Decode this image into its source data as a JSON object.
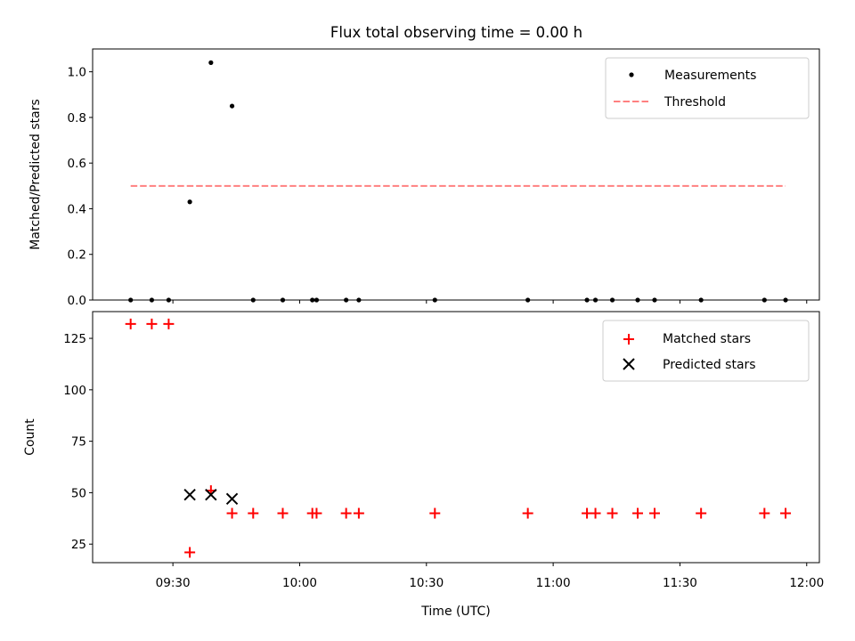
{
  "title": "Flux total observing time = 0.00 h",
  "xlabel": "Time (UTC)",
  "chart_data": [
    {
      "type": "scatter",
      "ylabel": "Matched/Predicted stars",
      "ylim": [
        0,
        1.1
      ],
      "yticks": [
        0.0,
        0.2,
        0.4,
        0.6,
        0.8,
        1.0
      ],
      "yticklabels": [
        "0.0",
        "0.2",
        "0.4",
        "0.6",
        "0.8",
        "1.0"
      ],
      "grid": false,
      "legend_position": "top-right",
      "series": [
        {
          "name": "Measurements",
          "kind": "scatter",
          "marker": "dot",
          "color": "#000000",
          "x": [
            "09:20",
            "09:25",
            "09:29",
            "09:34",
            "09:39",
            "09:44",
            "09:49",
            "09:56",
            "10:03",
            "10:04",
            "10:11",
            "10:14",
            "10:32",
            "10:54",
            "11:08",
            "11:10",
            "11:14",
            "11:20",
            "11:24",
            "11:35",
            "11:50",
            "11:55"
          ],
          "y": [
            0,
            0,
            0,
            0.43,
            1.04,
            0.85,
            0,
            0,
            0,
            0,
            0,
            0,
            0,
            0,
            0,
            0,
            0,
            0,
            0,
            0,
            0,
            0
          ]
        },
        {
          "name": "Threshold",
          "kind": "line",
          "style": "dashed",
          "color": "#ff8080",
          "x": [
            "09:20",
            "11:55"
          ],
          "y": [
            0.5,
            0.5
          ]
        }
      ]
    },
    {
      "type": "scatter",
      "ylabel": "Count",
      "ylim": [
        16,
        138
      ],
      "yticks": [
        25,
        50,
        75,
        100,
        125
      ],
      "yticklabels": [
        "25",
        "50",
        "75",
        "100",
        "125"
      ],
      "xlim": [
        "09:11",
        "12:03"
      ],
      "xticks": [
        "09:30",
        "10:00",
        "10:30",
        "11:00",
        "11:30",
        "12:00"
      ],
      "xticklabels": [
        "09:30",
        "10:00",
        "10:30",
        "11:00",
        "11:30",
        "12:00"
      ],
      "grid": false,
      "legend_position": "top-right",
      "series": [
        {
          "name": "Matched stars",
          "kind": "scatter",
          "marker": "plus",
          "color": "#ff0000",
          "x": [
            "09:20",
            "09:25",
            "09:29",
            "09:34",
            "09:39",
            "09:44",
            "09:49",
            "09:56",
            "10:03",
            "10:04",
            "10:11",
            "10:14",
            "10:32",
            "10:54",
            "11:08",
            "11:10",
            "11:14",
            "11:20",
            "11:24",
            "11:35",
            "11:50",
            "11:55"
          ],
          "y": [
            132,
            132,
            132,
            21,
            51,
            40,
            40,
            40,
            40,
            40,
            40,
            40,
            40,
            40,
            40,
            40,
            40,
            40,
            40,
            40,
            40,
            40
          ]
        },
        {
          "name": "Predicted stars",
          "kind": "scatter",
          "marker": "x",
          "color": "#000000",
          "x": [
            "09:34",
            "09:39",
            "09:44"
          ],
          "y": [
            49,
            49,
            47
          ]
        }
      ]
    }
  ]
}
